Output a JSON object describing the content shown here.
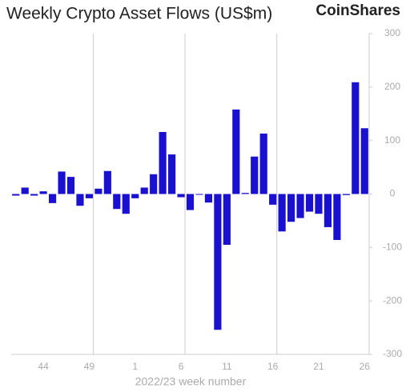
{
  "chart_data": {
    "type": "bar",
    "title": "Weekly Crypto Asset Flows (US$m)",
    "brand": "CoinShares",
    "x_label": "2022/23 week number",
    "categories": [
      null,
      null,
      null,
      "44",
      null,
      null,
      null,
      null,
      "49",
      null,
      null,
      null,
      null,
      "1",
      null,
      null,
      null,
      null,
      "6",
      null,
      null,
      null,
      null,
      "11",
      null,
      null,
      null,
      null,
      "16",
      null,
      null,
      null,
      null,
      "21",
      null,
      null,
      null,
      null,
      "26"
    ],
    "values": [
      -3,
      12,
      -3,
      5,
      -17,
      42,
      32,
      -22,
      -8,
      10,
      43,
      -28,
      -37,
      -8,
      12,
      37,
      116,
      74,
      -6,
      -30,
      -1,
      -16,
      -254,
      -95,
      158,
      2,
      70,
      113,
      -20,
      -70,
      -52,
      -45,
      -33,
      -37,
      -62,
      -86,
      -2,
      209,
      123
    ],
    "color": "#1a10cf",
    "ylim": [
      -300,
      300
    ],
    "yticks": [
      -300,
      -200,
      -100,
      0,
      100,
      200,
      300
    ],
    "grid": true
  }
}
